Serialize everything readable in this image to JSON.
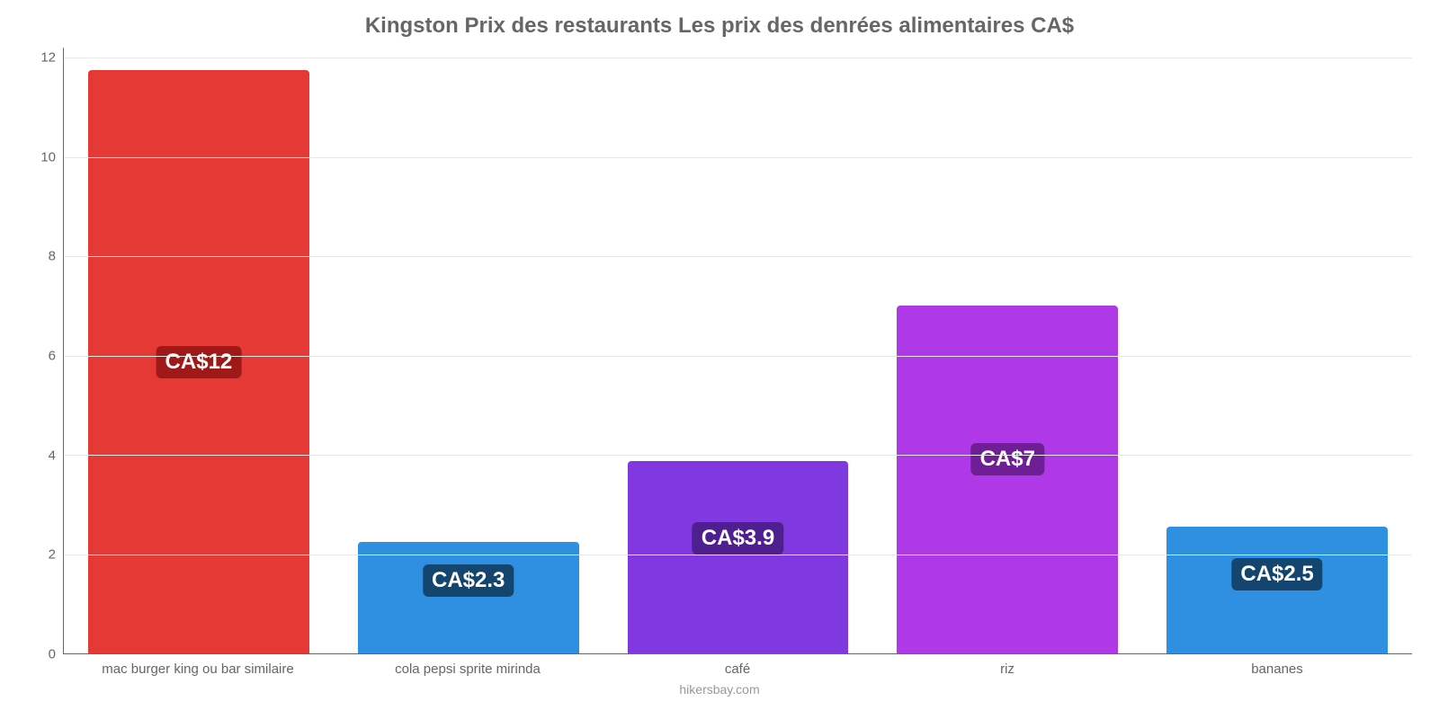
{
  "chart": {
    "type": "bar",
    "title": "Kingston Prix des restaurants Les prix des denrées alimentaires CA$",
    "title_color": "#666666",
    "title_fontsize": 24,
    "background_color": "#ffffff",
    "grid_color": "#e8e8e8",
    "axis_color": "#666666",
    "ylim": [
      0,
      12.2
    ],
    "yticks": [
      0,
      2,
      4,
      6,
      8,
      10,
      12
    ],
    "bar_width_pct": 82,
    "label_fontsize": 15,
    "label_color": "#666666",
    "value_label_fontsize": 24,
    "value_label_text_color": "#ffffff",
    "credit": "hikersbay.com",
    "credit_color": "#999999",
    "items": [
      {
        "category": "mac burger king ou bar similaire",
        "value": 11.75,
        "value_label": "CA$12",
        "bar_color": "#e53935",
        "badge_color": "#a01919",
        "badge_top_pct": 52
      },
      {
        "category": "cola pepsi sprite mirinda",
        "value": 2.25,
        "value_label": "CA$2.3",
        "bar_color": "#2f8fe0",
        "badge_color": "#13456e",
        "badge_top_pct": 88
      },
      {
        "category": "café",
        "value": 3.88,
        "value_label": "CA$3.9",
        "bar_color": "#8039e0",
        "badge_color": "#4d1f8f",
        "badge_top_pct": 81
      },
      {
        "category": "riz",
        "value": 7.0,
        "value_label": "CA$7",
        "bar_color": "#af39e6",
        "badge_color": "#6f1f96",
        "badge_top_pct": 68
      },
      {
        "category": "bananes",
        "value": 2.55,
        "value_label": "CA$2.5",
        "bar_color": "#2f8fe0",
        "badge_color": "#13456e",
        "badge_top_pct": 87
      }
    ]
  }
}
